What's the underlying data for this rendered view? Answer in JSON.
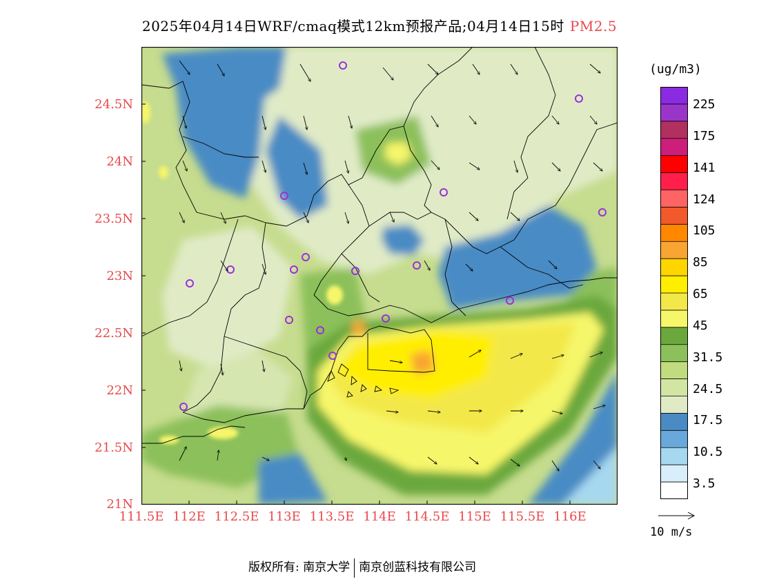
{
  "title": {
    "main": "2025年04月14日WRF/cmaq模式12km预报产品;04月14日15时",
    "pollutant": "PM2.5"
  },
  "map": {
    "lat_ticks": [
      "24.5N",
      "24N",
      "23.5N",
      "23N",
      "22.5N",
      "22N",
      "21.5N",
      "21N"
    ],
    "lon_ticks": [
      "111.5E",
      "112E",
      "112.5E",
      "113E",
      "113.5E",
      "114E",
      "114.5E",
      "115E",
      "115.5E",
      "116E"
    ],
    "lon_range": [
      111.5,
      116.5
    ],
    "lat_range": [
      21,
      25
    ],
    "colors": {
      "blue_low": "#4a8bc4",
      "mid_green": "#c6dc8e",
      "green": "#8cc05a",
      "yellow": "#ffee22",
      "orange": "#f4ad45"
    }
  },
  "colorbar": {
    "units": "(ug/m3)",
    "labels": [
      "225",
      "175",
      "141",
      "124",
      "105",
      "85",
      "65",
      "45",
      "31.5",
      "24.5",
      "17.5",
      "10.5",
      "3.5"
    ],
    "colors_top_to_bottom": [
      "#8a2be2",
      "#9a35c9",
      "#b0305f",
      "#cc1e7a",
      "#ff0000",
      "#ff1f4a",
      "#ff6464",
      "#f25a2b",
      "#ff8800",
      "#f9a531",
      "#ffd500",
      "#ffee00",
      "#f3e84a",
      "#f6f66a",
      "#6aa83c",
      "#8cc05a",
      "#c0dc7e",
      "#d2e5a3",
      "#e0ebc6",
      "#4a8bc4",
      "#69a8da",
      "#a6d8f0",
      "#d8eefa",
      "#ffffff"
    ]
  },
  "wind": {
    "reference_label": "10 m/s"
  },
  "footer": {
    "copyright": "版权所有: 南京大学",
    "company": "南京创蓝科技有限公司"
  }
}
